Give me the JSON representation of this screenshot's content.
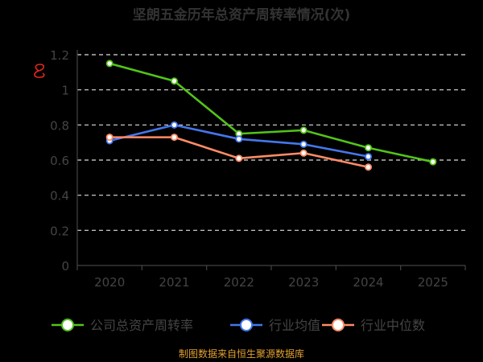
{
  "chart_data": {
    "type": "line",
    "title": "坚朗五金历年总资产周转率情况(次)",
    "categories": [
      "2020",
      "2021",
      "2022",
      "2023",
      "2024",
      "2025"
    ],
    "ylim": [
      0,
      1.2
    ],
    "yticks": [
      "0",
      "0.2",
      "0.4",
      "0.6",
      "0.8",
      "1",
      "1.2"
    ],
    "grid": true,
    "legend_position": "bottom",
    "series": [
      {
        "name": "公司总资产周转率",
        "color": "#52c41a",
        "values": [
          1.15,
          1.05,
          0.75,
          0.77,
          0.67,
          0.59
        ]
      },
      {
        "name": "行业均值",
        "color": "#4477ee",
        "values": [
          0.71,
          0.8,
          0.72,
          0.69,
          0.62,
          null
        ]
      },
      {
        "name": "行业中位数",
        "color": "#ff8c66",
        "values": [
          0.73,
          0.73,
          0.61,
          0.64,
          0.56,
          null
        ]
      }
    ],
    "footer": "制图数据来自恒生聚源数据库"
  }
}
